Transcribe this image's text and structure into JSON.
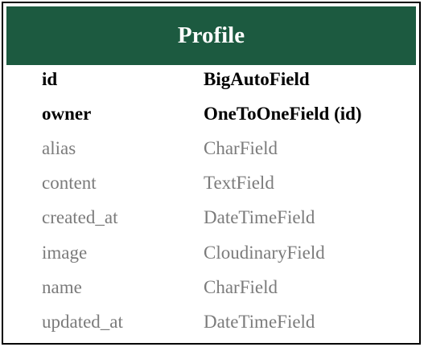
{
  "model": {
    "title": "Profile",
    "header_color": "#1c5a40",
    "key_text_color": "#000000",
    "plain_text_color": "#7b7b7b",
    "fields": [
      {
        "name": "id",
        "type": "BigAutoField",
        "emphasis": "bold"
      },
      {
        "name": "owner",
        "type": "OneToOneField (id)",
        "emphasis": "bold"
      },
      {
        "name": "alias",
        "type": "CharField",
        "emphasis": "regular"
      },
      {
        "name": "content",
        "type": "TextField",
        "emphasis": "regular"
      },
      {
        "name": "created_at",
        "type": "DateTimeField",
        "emphasis": "regular"
      },
      {
        "name": "image",
        "type": "CloudinaryField",
        "emphasis": "regular"
      },
      {
        "name": "name",
        "type": "CharField",
        "emphasis": "regular"
      },
      {
        "name": "updated_at",
        "type": "DateTimeField",
        "emphasis": "regular"
      }
    ]
  }
}
